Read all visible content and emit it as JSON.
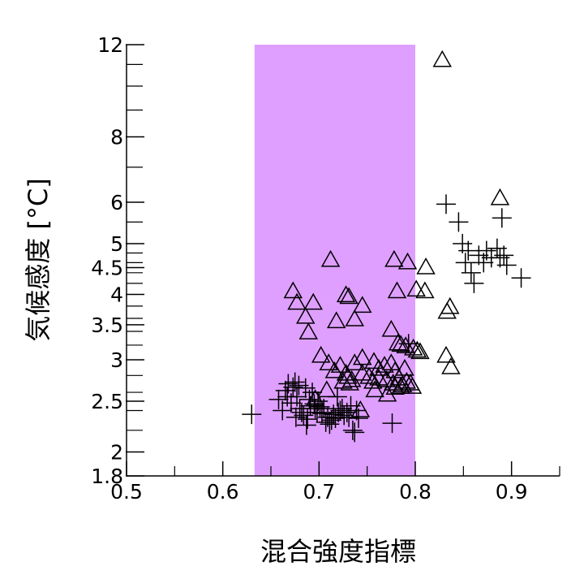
{
  "chart_data": {
    "type": "scatter",
    "title": "",
    "xlabel": "混合強度指標",
    "ylabel": "気候感度 [°C]",
    "xlim": [
      0.5,
      0.95
    ],
    "ylim": [
      1.8,
      12
    ],
    "y_scale": "log",
    "x_ticks": [
      {
        "value": 0.5,
        "label": "0.5"
      },
      {
        "value": 0.6,
        "label": "0.6"
      },
      {
        "value": 0.7,
        "label": "0.7"
      },
      {
        "value": 0.8,
        "label": "0.8"
      },
      {
        "value": 0.9,
        "label": "0.9"
      }
    ],
    "y_ticks": [
      {
        "value": 1.8,
        "label": "1.8"
      },
      {
        "value": 2,
        "label": "2"
      },
      {
        "value": 2.5,
        "label": "2.5"
      },
      {
        "value": 3,
        "label": "3"
      },
      {
        "value": 3.5,
        "label": "3.5"
      },
      {
        "value": 4,
        "label": "4"
      },
      {
        "value": 4.5,
        "label": "4.5"
      },
      {
        "value": 5,
        "label": "5"
      },
      {
        "value": 6,
        "label": "6"
      },
      {
        "value": 8,
        "label": "8"
      },
      {
        "value": 12,
        "label": "12"
      }
    ],
    "y_minor_ticks": [
      2.2,
      2.4,
      2.6,
      2.8,
      3.2,
      3.4,
      3.6,
      3.8,
      4.2,
      4.4,
      4.6,
      4.8,
      5.5,
      7,
      9,
      10,
      11
    ],
    "x_minor_ticks": [
      0.55,
      0.65,
      0.75,
      0.85,
      0.95
    ],
    "shaded_band": {
      "x_from": 0.633,
      "x_to": 0.8,
      "color": "#df9fff"
    },
    "grid": false,
    "series": [
      {
        "marker": "triangle",
        "points": [
          [
            0.828,
            11.2
          ],
          [
            0.888,
            6.1
          ],
          [
            0.712,
            4.65
          ],
          [
            0.778,
            4.65
          ],
          [
            0.792,
            4.6
          ],
          [
            0.811,
            4.5
          ],
          [
            0.673,
            4.05
          ],
          [
            0.677,
            3.85
          ],
          [
            0.694,
            3.85
          ],
          [
            0.728,
            3.98
          ],
          [
            0.731,
            3.95
          ],
          [
            0.745,
            3.8
          ],
          [
            0.781,
            4.05
          ],
          [
            0.801,
            4.08
          ],
          [
            0.81,
            4.05
          ],
          [
            0.686,
            3.62
          ],
          [
            0.718,
            3.55
          ],
          [
            0.737,
            3.58
          ],
          [
            0.836,
            3.78
          ],
          [
            0.833,
            3.7
          ],
          [
            0.689,
            3.38
          ],
          [
            0.775,
            3.42
          ],
          [
            0.782,
            3.22
          ],
          [
            0.785,
            3.2
          ],
          [
            0.79,
            3.18
          ],
          [
            0.798,
            3.15
          ],
          [
            0.802,
            3.12
          ],
          [
            0.805,
            3.1
          ],
          [
            0.702,
            3.05
          ],
          [
            0.832,
            3.05
          ],
          [
            0.837,
            2.9
          ],
          [
            0.71,
            2.95
          ],
          [
            0.722,
            2.92
          ],
          [
            0.737,
            2.95
          ],
          [
            0.745,
            3.02
          ],
          [
            0.757,
            2.97
          ],
          [
            0.762,
            2.88
          ],
          [
            0.768,
            2.92
          ],
          [
            0.775,
            2.95
          ],
          [
            0.779,
            2.85
          ],
          [
            0.789,
            2.88
          ],
          [
            0.716,
            2.85
          ],
          [
            0.728,
            2.82
          ],
          [
            0.73,
            2.78
          ],
          [
            0.734,
            2.74
          ],
          [
            0.725,
            2.72
          ],
          [
            0.732,
            2.7
          ],
          [
            0.745,
            2.82
          ],
          [
            0.752,
            2.78
          ],
          [
            0.756,
            2.72
          ],
          [
            0.762,
            2.76
          ],
          [
            0.77,
            2.74
          ],
          [
            0.777,
            2.7
          ],
          [
            0.783,
            2.76
          ],
          [
            0.787,
            2.68
          ],
          [
            0.791,
            2.72
          ],
          [
            0.795,
            2.7
          ],
          [
            0.785,
            2.66
          ],
          [
            0.779,
            2.65
          ],
          [
            0.797,
            2.66
          ],
          [
            0.708,
            2.62
          ],
          [
            0.758,
            2.62
          ],
          [
            0.771,
            2.57
          ],
          [
            0.696,
            2.52
          ],
          [
            0.743,
            2.4
          ]
        ]
      },
      {
        "marker": "plus",
        "points": [
          [
            0.63,
            2.36
          ],
          [
            0.658,
            2.52
          ],
          [
            0.662,
            2.4
          ],
          [
            0.665,
            2.62
          ],
          [
            0.667,
            2.55
          ],
          [
            0.668,
            2.7
          ],
          [
            0.671,
            2.48
          ],
          [
            0.673,
            2.66
          ],
          [
            0.675,
            2.72
          ],
          [
            0.676,
            2.33
          ],
          [
            0.677,
            2.55
          ],
          [
            0.679,
            2.68
          ],
          [
            0.68,
            2.42
          ],
          [
            0.682,
            2.38
          ],
          [
            0.684,
            2.35
          ],
          [
            0.686,
            2.65
          ],
          [
            0.687,
            2.25
          ],
          [
            0.688,
            2.31
          ],
          [
            0.69,
            2.52
          ],
          [
            0.691,
            2.45
          ],
          [
            0.693,
            2.6
          ],
          [
            0.695,
            2.47
          ],
          [
            0.696,
            2.42
          ],
          [
            0.698,
            2.38
          ],
          [
            0.699,
            2.5
          ],
          [
            0.701,
            2.44
          ],
          [
            0.703,
            2.37
          ],
          [
            0.705,
            2.42
          ],
          [
            0.707,
            2.28
          ],
          [
            0.709,
            2.33
          ],
          [
            0.711,
            2.26
          ],
          [
            0.713,
            2.3
          ],
          [
            0.715,
            2.36
          ],
          [
            0.717,
            2.32
          ],
          [
            0.719,
            2.55
          ],
          [
            0.72,
            2.38
          ],
          [
            0.722,
            2.4
          ],
          [
            0.724,
            2.42
          ],
          [
            0.726,
            2.35
          ],
          [
            0.729,
            2.38
          ],
          [
            0.731,
            2.33
          ],
          [
            0.733,
            2.45
          ],
          [
            0.735,
            2.2
          ],
          [
            0.737,
            2.18
          ],
          [
            0.739,
            2.4
          ],
          [
            0.741,
            2.32
          ],
          [
            0.776,
            2.27
          ],
          [
            0.832,
            5.95
          ],
          [
            0.845,
            5.5
          ],
          [
            0.849,
            5.0
          ],
          [
            0.852,
            4.6
          ],
          [
            0.855,
            4.85
          ],
          [
            0.858,
            4.4
          ],
          [
            0.861,
            4.2
          ],
          [
            0.866,
            4.75
          ],
          [
            0.871,
            4.6
          ],
          [
            0.874,
            4.85
          ],
          [
            0.879,
            4.7
          ],
          [
            0.885,
            4.9
          ],
          [
            0.888,
            4.7
          ],
          [
            0.892,
            4.75
          ],
          [
            0.895,
            4.55
          ],
          [
            0.89,
            5.6
          ],
          [
            0.91,
            4.3
          ],
          [
            0.793,
            3.22
          ]
        ]
      }
    ]
  }
}
